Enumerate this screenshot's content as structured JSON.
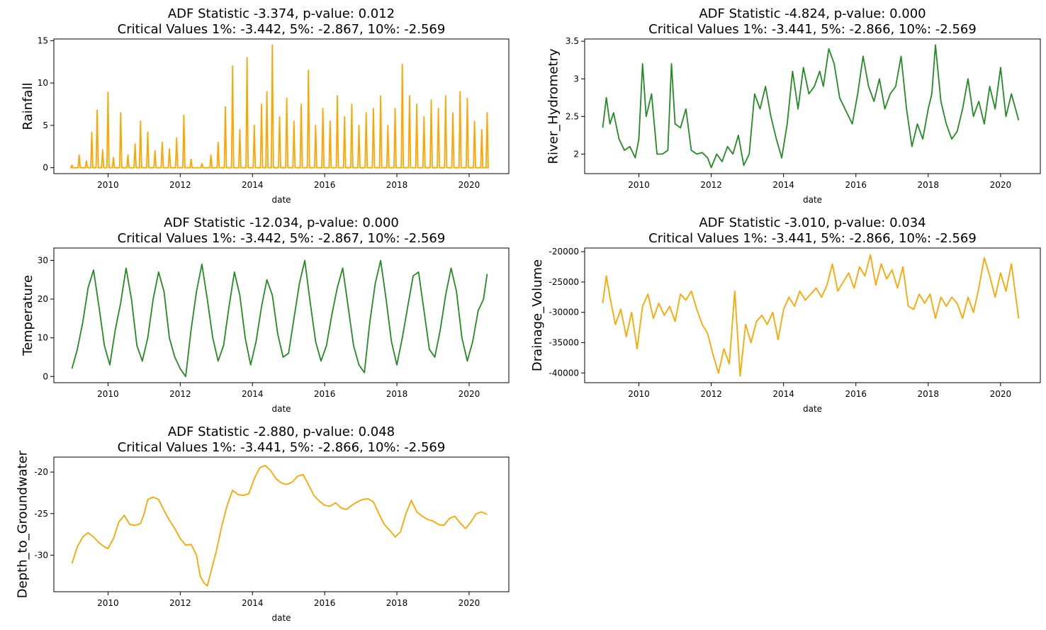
{
  "figure": {
    "background": "#ffffff"
  },
  "chart_data": [
    {
      "type": "line",
      "title_line1": "ADF Statistic -3.374, p-value: 0.012",
      "title_line2": "Critical Values 1%: -3.442, 5%: -2.867, 10%: -2.569",
      "xlabel": "date",
      "ylabel": "Rainfall",
      "color": "#ffa500",
      "xlim": [
        2008.5,
        2021.1
      ],
      "ylim": [
        -0.7,
        15.2
      ],
      "xticks": [
        2010,
        2012,
        2014,
        2016,
        2018,
        2020
      ],
      "yticks": [
        0,
        5,
        10,
        15
      ],
      "series_kind": "spiky",
      "x": [
        2009.0,
        2009.2,
        2009.4,
        2009.55,
        2009.7,
        2009.85,
        2010.0,
        2010.15,
        2010.35,
        2010.55,
        2010.75,
        2010.9,
        2011.1,
        2011.3,
        2011.5,
        2011.7,
        2011.9,
        2012.1,
        2012.3,
        2012.6,
        2012.85,
        2013.05,
        2013.25,
        2013.45,
        2013.65,
        2013.85,
        2014.05,
        2014.25,
        2014.4,
        2014.55,
        2014.75,
        2014.95,
        2015.15,
        2015.35,
        2015.55,
        2015.75,
        2015.95,
        2016.15,
        2016.35,
        2016.55,
        2016.75,
        2016.95,
        2017.15,
        2017.35,
        2017.55,
        2017.75,
        2017.95,
        2018.15,
        2018.35,
        2018.55,
        2018.75,
        2018.95,
        2019.15,
        2019.35,
        2019.55,
        2019.75,
        2019.95,
        2020.15,
        2020.35,
        2020.5
      ],
      "y": [
        0.3,
        1.5,
        0.8,
        4.2,
        6.8,
        2.1,
        8.9,
        1.2,
        6.5,
        1.5,
        2.8,
        5.5,
        4.2,
        2.0,
        3.0,
        2.2,
        3.5,
        6.2,
        1.0,
        0.5,
        1.5,
        3.0,
        7.2,
        12.0,
        4.5,
        13.0,
        5.0,
        7.5,
        9.0,
        14.5,
        6.0,
        8.2,
        5.5,
        7.5,
        11.5,
        5.0,
        7.0,
        5.5,
        8.5,
        6.0,
        7.5,
        5.0,
        6.5,
        7.0,
        8.5,
        5.0,
        7.0,
        12.2,
        8.5,
        7.5,
        6.0,
        8.0,
        7.0,
        8.5,
        6.5,
        9.0,
        8.2,
        5.5,
        4.5,
        6.5
      ]
    },
    {
      "type": "line",
      "title_line1": "ADF Statistic -4.824, p-value: 0.000",
      "title_line2": "Critical Values 1%: -3.441, 5%: -2.866, 10%: -2.569",
      "xlabel": "date",
      "ylabel": "River_Hydrometry",
      "color": "#228b22",
      "xlim": [
        2008.5,
        2021.1
      ],
      "ylim": [
        1.74,
        3.53
      ],
      "xticks": [
        2010,
        2012,
        2014,
        2016,
        2018,
        2020
      ],
      "yticks": [
        2.0,
        2.5,
        3.0,
        3.5
      ],
      "series_kind": "line",
      "x": [
        2009.0,
        2009.1,
        2009.2,
        2009.3,
        2009.45,
        2009.6,
        2009.75,
        2009.9,
        2010.0,
        2010.1,
        2010.2,
        2010.35,
        2010.5,
        2010.65,
        2010.8,
        2010.9,
        2011.0,
        2011.15,
        2011.3,
        2011.45,
        2011.6,
        2011.75,
        2011.9,
        2012.0,
        2012.15,
        2012.3,
        2012.45,
        2012.6,
        2012.75,
        2012.9,
        2013.05,
        2013.2,
        2013.35,
        2013.5,
        2013.65,
        2013.8,
        2013.95,
        2014.1,
        2014.25,
        2014.4,
        2014.55,
        2014.7,
        2014.85,
        2015.0,
        2015.1,
        2015.25,
        2015.4,
        2015.55,
        2015.75,
        2015.9,
        2016.05,
        2016.2,
        2016.35,
        2016.5,
        2016.65,
        2016.8,
        2016.95,
        2017.1,
        2017.25,
        2017.4,
        2017.55,
        2017.7,
        2017.85,
        2018.0,
        2018.1,
        2018.2,
        2018.35,
        2018.5,
        2018.65,
        2018.8,
        2018.95,
        2019.1,
        2019.25,
        2019.4,
        2019.55,
        2019.7,
        2019.85,
        2020.0,
        2020.15,
        2020.3,
        2020.5
      ],
      "y": [
        2.35,
        2.75,
        2.4,
        2.55,
        2.2,
        2.05,
        2.1,
        1.95,
        2.2,
        3.2,
        2.5,
        2.8,
        2.0,
        2.0,
        2.05,
        3.2,
        2.4,
        2.35,
        2.6,
        2.05,
        2.0,
        2.02,
        1.95,
        1.82,
        2.0,
        1.9,
        2.1,
        2.0,
        2.25,
        1.85,
        2.0,
        2.8,
        2.6,
        2.9,
        2.5,
        2.2,
        1.95,
        2.4,
        3.1,
        2.6,
        3.15,
        2.8,
        2.9,
        3.1,
        2.9,
        3.4,
        3.2,
        2.75,
        2.55,
        2.4,
        2.8,
        3.3,
        2.9,
        2.7,
        3.0,
        2.6,
        2.8,
        2.9,
        3.3,
        2.6,
        2.1,
        2.4,
        2.2,
        2.6,
        2.8,
        3.45,
        2.7,
        2.4,
        2.2,
        2.3,
        2.6,
        3.0,
        2.5,
        2.7,
        2.4,
        2.9,
        2.6,
        3.15,
        2.5,
        2.8,
        2.45
      ]
    },
    {
      "type": "line",
      "title_line1": "ADF Statistic -12.034, p-value: 0.000",
      "title_line2": "Critical Values 1%: -3.442, 5%: -2.867, 10%: -2.569",
      "xlabel": "date",
      "ylabel": "Temperature",
      "color": "#228b22",
      "xlim": [
        2008.5,
        2021.1
      ],
      "ylim": [
        -1.6,
        33.2
      ],
      "xticks": [
        2010,
        2012,
        2014,
        2016,
        2018,
        2020
      ],
      "yticks": [
        0,
        10,
        20,
        30
      ],
      "series_kind": "line",
      "x": [
        2009.0,
        2009.15,
        2009.3,
        2009.45,
        2009.6,
        2009.75,
        2009.9,
        2010.05,
        2010.2,
        2010.35,
        2010.5,
        2010.65,
        2010.8,
        2010.95,
        2011.1,
        2011.25,
        2011.4,
        2011.55,
        2011.7,
        2011.85,
        2012.0,
        2012.15,
        2012.3,
        2012.45,
        2012.6,
        2012.75,
        2012.9,
        2013.05,
        2013.2,
        2013.35,
        2013.5,
        2013.65,
        2013.8,
        2013.95,
        2014.1,
        2014.25,
        2014.4,
        2014.55,
        2014.7,
        2014.85,
        2015.0,
        2015.15,
        2015.3,
        2015.45,
        2015.6,
        2015.75,
        2015.9,
        2016.05,
        2016.2,
        2016.35,
        2016.5,
        2016.65,
        2016.8,
        2016.95,
        2017.1,
        2017.25,
        2017.4,
        2017.55,
        2017.7,
        2017.85,
        2018.0,
        2018.15,
        2018.3,
        2018.45,
        2018.6,
        2018.75,
        2018.9,
        2019.05,
        2019.2,
        2019.35,
        2019.5,
        2019.65,
        2019.8,
        2019.95,
        2020.1,
        2020.25,
        2020.4,
        2020.5
      ],
      "y": [
        2.0,
        7.0,
        14.0,
        23.0,
        27.5,
        18.0,
        8.0,
        3.0,
        12.0,
        19.0,
        28.0,
        20.0,
        8.0,
        4.0,
        10.0,
        20.0,
        27.0,
        22.0,
        10.0,
        5.0,
        2.0,
        0.0,
        12.0,
        22.0,
        29.0,
        20.0,
        10.0,
        4.0,
        8.0,
        18.0,
        27.0,
        21.0,
        10.0,
        3.0,
        9.0,
        18.0,
        25.0,
        21.0,
        11.0,
        5.0,
        6.0,
        15.0,
        24.0,
        30.0,
        19.0,
        9.0,
        4.0,
        8.0,
        16.0,
        23.0,
        28.0,
        18.0,
        8.0,
        3.0,
        1.0,
        14.0,
        24.0,
        30.0,
        20.0,
        9.0,
        3.0,
        10.0,
        18.0,
        26.0,
        27.0,
        17.0,
        7.0,
        5.0,
        12.0,
        21.0,
        28.0,
        22.0,
        10.0,
        4.0,
        9.0,
        17.0,
        20.0,
        26.5
      ]
    },
    {
      "type": "line",
      "title_line1": "ADF Statistic -3.010, p-value: 0.034",
      "title_line2": "Critical Values 1%: -3.441, 5%: -2.866, 10%: -2.569",
      "xlabel": "date",
      "ylabel": "Drainage_Volume",
      "color": "#ffa500",
      "xlim": [
        2008.5,
        2021.1
      ],
      "ylim": [
        -41600,
        -19400
      ],
      "xticks": [
        2010,
        2012,
        2014,
        2016,
        2018,
        2020
      ],
      "yticks": [
        -40000,
        -35000,
        -30000,
        -25000,
        -20000
      ],
      "series_kind": "line",
      "x": [
        2009.0,
        2009.1,
        2009.2,
        2009.35,
        2009.5,
        2009.65,
        2009.8,
        2009.95,
        2010.1,
        2010.25,
        2010.4,
        2010.55,
        2010.7,
        2010.85,
        2011.0,
        2011.15,
        2011.3,
        2011.45,
        2011.6,
        2011.75,
        2011.9,
        2012.05,
        2012.2,
        2012.35,
        2012.5,
        2012.65,
        2012.8,
        2012.95,
        2013.1,
        2013.25,
        2013.4,
        2013.55,
        2013.7,
        2013.85,
        2014.0,
        2014.15,
        2014.3,
        2014.45,
        2014.6,
        2014.75,
        2014.9,
        2015.05,
        2015.2,
        2015.35,
        2015.5,
        2015.65,
        2015.8,
        2015.95,
        2016.1,
        2016.25,
        2016.4,
        2016.55,
        2016.7,
        2016.85,
        2017.0,
        2017.15,
        2017.3,
        2017.45,
        2017.6,
        2017.75,
        2017.9,
        2018.05,
        2018.2,
        2018.35,
        2018.5,
        2018.65,
        2018.8,
        2018.95,
        2019.1,
        2019.25,
        2019.4,
        2019.55,
        2019.7,
        2019.85,
        2020.0,
        2020.15,
        2020.3,
        2020.5
      ],
      "y": [
        -28500,
        -24000,
        -27500,
        -32000,
        -29500,
        -34000,
        -30000,
        -36000,
        -29000,
        -27000,
        -31000,
        -28500,
        -30500,
        -29000,
        -31500,
        -27000,
        -28000,
        -26500,
        -29500,
        -32000,
        -33500,
        -37000,
        -40000,
        -36000,
        -38500,
        -26500,
        -40500,
        -32000,
        -35000,
        -31500,
        -30500,
        -32000,
        -30000,
        -34500,
        -29500,
        -27500,
        -29000,
        -26500,
        -28000,
        -27000,
        -26000,
        -27500,
        -25500,
        -22000,
        -26500,
        -25000,
        -23500,
        -26000,
        -22500,
        -24000,
        -20500,
        -25500,
        -22000,
        -24500,
        -23000,
        -26000,
        -22500,
        -29000,
        -29500,
        -27000,
        -28500,
        -27000,
        -31000,
        -27500,
        -29000,
        -27500,
        -28500,
        -31000,
        -27500,
        -30000,
        -26000,
        -21000,
        -24000,
        -27500,
        -23500,
        -26500,
        -22000,
        -31000
      ]
    },
    {
      "type": "line",
      "title_line1": "ADF Statistic -2.880, p-value: 0.048",
      "title_line2": "Critical Values 1%: -3.441, 5%: -2.866, 10%: -2.569",
      "xlabel": "date",
      "ylabel": "Depth_to_Groundwater",
      "color": "#ffa500",
      "xlim": [
        2008.5,
        2021.1
      ],
      "ylim": [
        -34.4,
        -18.2
      ],
      "xticks": [
        2010,
        2012,
        2014,
        2016,
        2018,
        2020
      ],
      "yticks": [
        -30,
        -25,
        -20
      ],
      "series_kind": "line",
      "x": [
        2009.0,
        2009.15,
        2009.3,
        2009.45,
        2009.6,
        2009.75,
        2009.9,
        2010.0,
        2010.15,
        2010.3,
        2010.45,
        2010.6,
        2010.75,
        2010.9,
        2011.0,
        2011.1,
        2011.25,
        2011.4,
        2011.55,
        2011.7,
        2011.85,
        2012.0,
        2012.15,
        2012.3,
        2012.45,
        2012.55,
        2012.65,
        2012.75,
        2012.85,
        2013.0,
        2013.15,
        2013.3,
        2013.45,
        2013.6,
        2013.75,
        2013.9,
        2014.05,
        2014.2,
        2014.35,
        2014.5,
        2014.65,
        2014.8,
        2014.95,
        2015.1,
        2015.25,
        2015.4,
        2015.55,
        2015.7,
        2015.85,
        2016.0,
        2016.15,
        2016.3,
        2016.45,
        2016.6,
        2016.75,
        2016.9,
        2017.05,
        2017.2,
        2017.35,
        2017.5,
        2017.65,
        2017.8,
        2017.95,
        2018.1,
        2018.25,
        2018.4,
        2018.55,
        2018.7,
        2018.85,
        2019.0,
        2019.15,
        2019.3,
        2019.45,
        2019.6,
        2019.75,
        2019.9,
        2020.05,
        2020.2,
        2020.35,
        2020.5
      ],
      "y": [
        -31.0,
        -29.0,
        -27.8,
        -27.3,
        -27.8,
        -28.5,
        -29.0,
        -29.2,
        -28.0,
        -26.0,
        -25.2,
        -26.3,
        -26.4,
        -26.2,
        -25.0,
        -23.3,
        -23.0,
        -23.3,
        -24.6,
        -25.8,
        -26.8,
        -28.0,
        -28.8,
        -28.7,
        -30.0,
        -32.5,
        -33.3,
        -33.7,
        -32.0,
        -29.5,
        -26.5,
        -24.0,
        -22.2,
        -22.7,
        -22.8,
        -22.6,
        -20.8,
        -19.5,
        -19.2,
        -19.8,
        -20.8,
        -21.3,
        -21.5,
        -21.2,
        -20.5,
        -20.3,
        -21.5,
        -22.8,
        -23.5,
        -24.0,
        -24.1,
        -23.7,
        -24.3,
        -24.5,
        -24.0,
        -23.6,
        -23.3,
        -23.2,
        -23.6,
        -25.0,
        -26.3,
        -27.0,
        -27.8,
        -27.2,
        -25.0,
        -23.4,
        -24.8,
        -25.3,
        -25.7,
        -25.9,
        -26.3,
        -26.4,
        -25.6,
        -25.3,
        -26.1,
        -26.8,
        -26.0,
        -25.0,
        -24.8,
        -25.1
      ]
    }
  ]
}
